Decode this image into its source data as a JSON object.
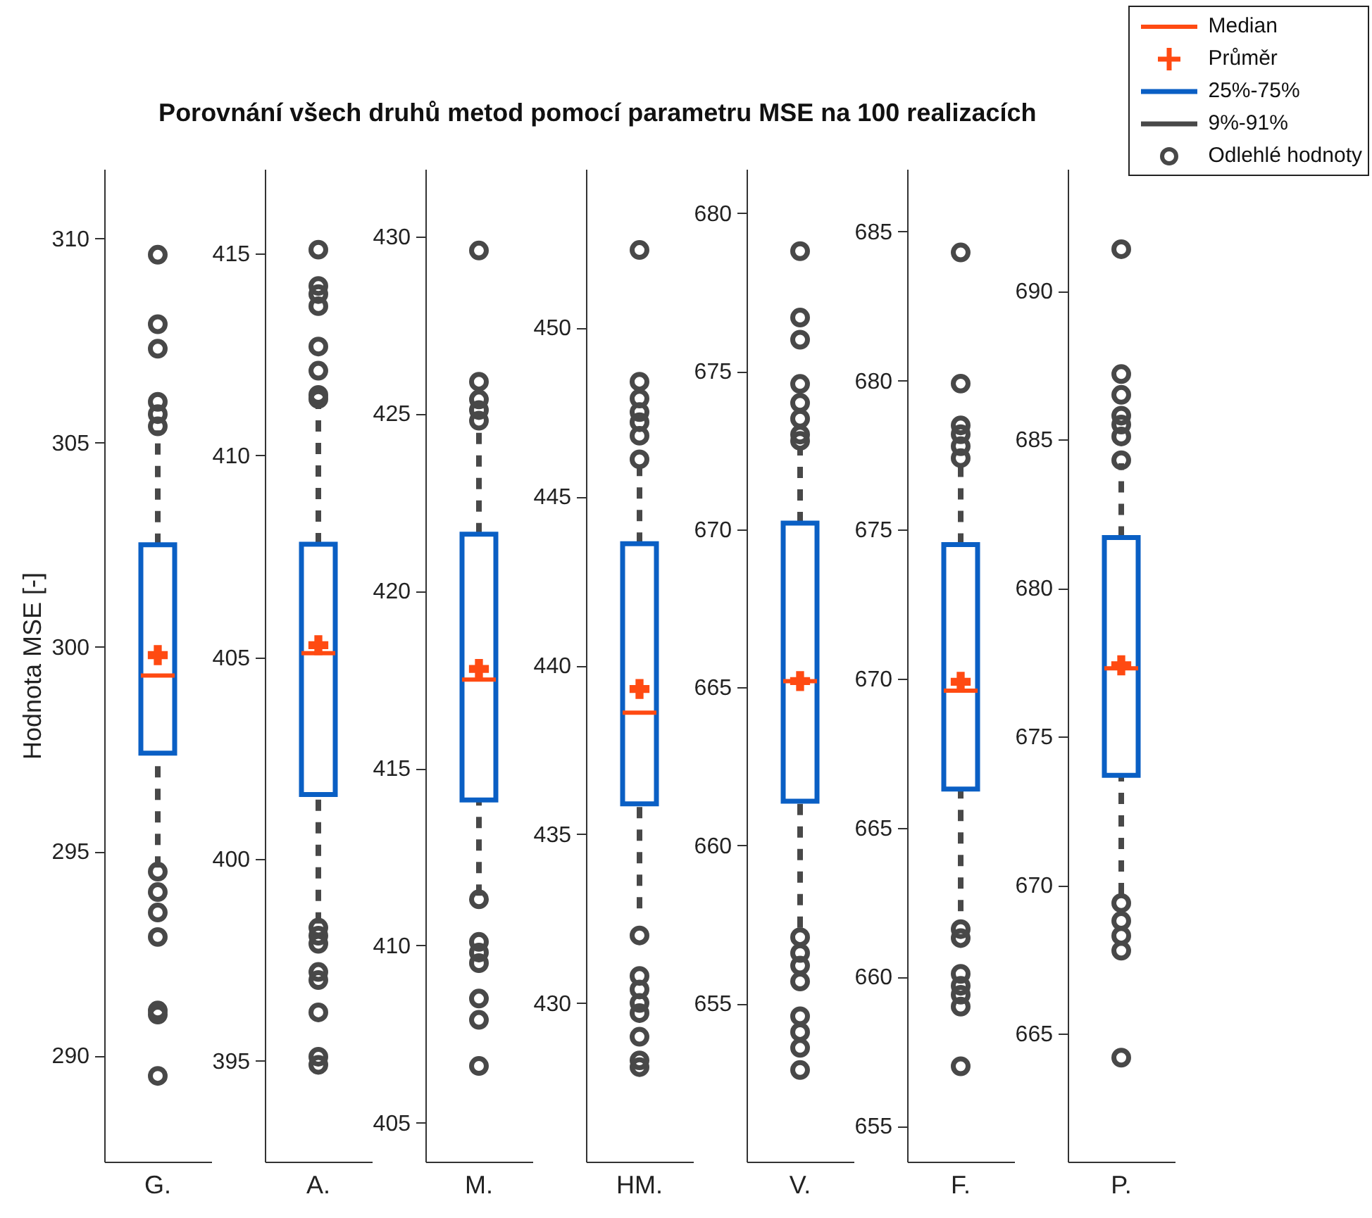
{
  "chart_data": [
    {
      "type": "box",
      "title": "Porovnání všech druhů metod pomocí parametru MSE na 100 realizacích",
      "ylabel": "Hodnota MSE [-]",
      "categories": [
        "G."
      ],
      "ylim": [
        287.4,
        311.7
      ],
      "yticks": [
        290,
        295,
        300,
        305,
        310
      ],
      "grid": false,
      "series": [
        {
          "color": "#0a5fc4",
          "boxes": [
            {
              "low": 294.6,
              "q1": 297.4,
              "median": 299.3,
              "q3": 302.5,
              "high": 305.3,
              "mean": 299.8,
              "outliers": [
                309.6,
                307.9,
                307.3,
                306.0,
                305.7,
                305.4,
                294.5,
                294.0,
                293.5,
                292.9,
                291.1,
                291.0,
                289.5
              ]
            }
          ]
        }
      ]
    },
    {
      "type": "box",
      "categories": [
        "A."
      ],
      "ylim": [
        392.5,
        417.1
      ],
      "yticks": [
        395,
        400,
        405,
        410,
        415
      ],
      "grid": false,
      "series": [
        {
          "color": "#0a5fc4",
          "boxes": [
            {
              "low": 398.4,
              "q1": 401.6,
              "median": 405.1,
              "q3": 407.8,
              "high": 411.3,
              "mean": 405.3,
              "outliers": [
                415.1,
                414.2,
                414.0,
                413.7,
                412.7,
                412.1,
                411.5,
                411.4,
                398.3,
                398.1,
                397.9,
                397.2,
                397.0,
                396.2,
                395.1,
                394.9
              ]
            }
          ]
        }
      ]
    },
    {
      "type": "box",
      "categories": [
        "M."
      ],
      "ylim": [
        403.9,
        431.9
      ],
      "yticks": [
        405,
        410,
        415,
        420,
        425,
        430
      ],
      "grid": false,
      "series": [
        {
          "color": "#0a5fc4",
          "boxes": [
            {
              "low": 411.4,
              "q1": 414.1,
              "median": 417.5,
              "q3": 421.6,
              "high": 424.7,
              "mean": 417.8,
              "outliers": [
                429.6,
                425.9,
                425.4,
                425.1,
                424.8,
                411.3,
                410.1,
                409.8,
                409.5,
                408.5,
                407.9,
                406.6
              ]
            }
          ]
        }
      ]
    },
    {
      "type": "box",
      "categories": [
        "HM."
      ],
      "ylim": [
        425.3,
        454.7
      ],
      "yticks": [
        430,
        435,
        440,
        445,
        450
      ],
      "grid": false,
      "series": [
        {
          "color": "#0a5fc4",
          "boxes": [
            {
              "low": 432.8,
              "q1": 435.9,
              "median": 438.6,
              "q3": 443.6,
              "high": 445.9,
              "mean": 439.3,
              "outliers": [
                452.3,
                448.4,
                447.9,
                447.5,
                447.2,
                446.8,
                446.1,
                432.0,
                430.8,
                430.4,
                430.0,
                429.7,
                429.0,
                428.3,
                428.1
              ]
            }
          ]
        }
      ]
    },
    {
      "type": "box",
      "categories": [
        "V."
      ],
      "ylim": [
        650.0,
        681.4
      ],
      "yticks": [
        655,
        660,
        665,
        670,
        675,
        680
      ],
      "grid": false,
      "series": [
        {
          "color": "#0a5fc4",
          "boxes": [
            {
              "low": 657.4,
              "q1": 661.4,
              "median": 665.2,
              "q3": 670.2,
              "high": 672.6,
              "mean": 665.2,
              "outliers": [
                678.8,
                676.7,
                676.0,
                674.6,
                674.0,
                673.5,
                673.0,
                672.8,
                657.1,
                656.6,
                656.2,
                655.7,
                654.6,
                654.1,
                653.6,
                652.9
              ]
            }
          ]
        }
      ]
    },
    {
      "type": "box",
      "categories": [
        "F."
      ],
      "ylim": [
        653.8,
        687.1
      ],
      "yticks": [
        655,
        660,
        665,
        670,
        675,
        680,
        685
      ],
      "grid": false,
      "series": [
        {
          "color": "#0a5fc4",
          "boxes": [
            {
              "low": 662.2,
              "q1": 666.3,
              "median": 669.6,
              "q3": 674.5,
              "high": 677.2,
              "mean": 669.9,
              "outliers": [
                684.3,
                679.9,
                678.5,
                678.2,
                677.8,
                677.4,
                661.6,
                661.3,
                660.1,
                659.7,
                659.4,
                659.0,
                657.0
              ]
            }
          ]
        }
      ]
    },
    {
      "type": "box",
      "categories": [
        "P."
      ],
      "ylim": [
        660.7,
        694.1
      ],
      "yticks": [
        665,
        670,
        675,
        680,
        685,
        690
      ],
      "grid": false,
      "annotations": [
        "Median",
        "Průměr",
        "25%-75%",
        "9%-91%",
        "Odlehlé hodnoty"
      ],
      "series": [
        {
          "color": "#0a5fc4",
          "boxes": [
            {
              "low": 669.7,
              "q1": 673.7,
              "median": 677.3,
              "q3": 681.7,
              "high": 684.2,
              "mean": 677.4,
              "outliers": [
                691.4,
                687.2,
                686.5,
                685.8,
                685.5,
                685.1,
                684.3,
                669.4,
                668.8,
                668.3,
                667.8,
                664.2
              ]
            }
          ]
        }
      ]
    }
  ]
}
